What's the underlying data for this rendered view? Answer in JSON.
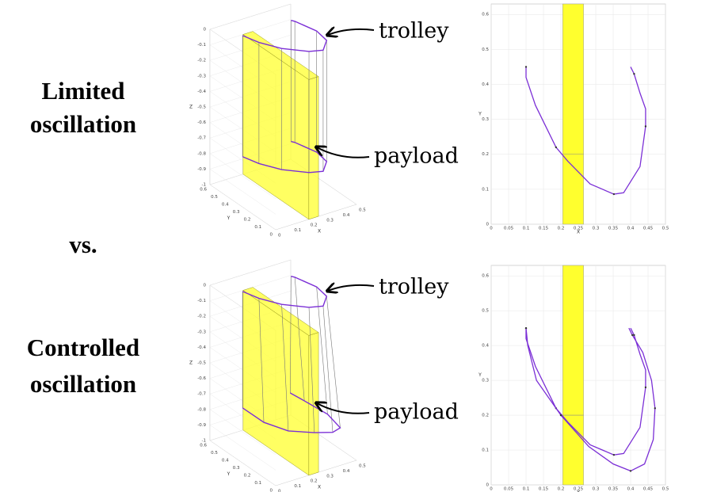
{
  "rows": [
    {
      "label": [
        "Limited",
        "oscillation"
      ]
    },
    {
      "label": [
        "Controlled",
        "oscillation"
      ]
    }
  ],
  "vs": "vs.",
  "chart_data": [
    {
      "type": "line3d",
      "xlabel": "X",
      "ylabel": "Y",
      "zlabel": "Z",
      "xlim": [
        0,
        0.5
      ],
      "ylim": [
        0,
        0.6
      ],
      "zlim": [
        -1,
        0
      ],
      "xticks": [
        0,
        0.1,
        0.2,
        0.3,
        0.4,
        0.5
      ],
      "yticks": [
        0,
        0.1,
        0.2,
        0.3,
        0.4,
        0.5,
        0.6
      ],
      "zticks": [
        0,
        -0.1,
        -0.2,
        -0.3,
        -0.4,
        -0.5,
        -0.6,
        -0.7,
        -0.8,
        -0.9,
        -1
      ],
      "obstacle": {
        "x": [
          0.205,
          0.265
        ],
        "y": [
          0,
          0.6
        ],
        "z": [
          -1,
          -0.1
        ]
      },
      "series": [
        {
          "color": "#7b2fd6",
          "x": [
            0.1,
            0.127,
            0.186,
            0.284,
            0.352,
            0.427,
            0.443,
            0.41,
            0.4
          ],
          "y": [
            0.45,
            0.34,
            0.22,
            0.115,
            0.086,
            0.165,
            0.28,
            0.43,
            0.45
          ],
          "z": [
            0,
            0,
            0,
            0,
            0,
            0,
            0,
            0,
            0
          ]
        },
        {
          "color": "#7b2fd6",
          "x": [
            0.1,
            0.127,
            0.186,
            0.284,
            0.352,
            0.427,
            0.443,
            0.41,
            0.4
          ],
          "y": [
            0.45,
            0.34,
            0.22,
            0.115,
            0.086,
            0.165,
            0.28,
            0.43,
            0.45
          ],
          "z": [
            -0.78,
            -0.78,
            -0.78,
            -0.78,
            -0.78,
            -0.78,
            -0.78,
            -0.78,
            -0.78
          ]
        }
      ],
      "annotations": [
        {
          "text": "trolley"
        },
        {
          "text": "payload"
        }
      ]
    },
    {
      "type": "line",
      "xlabel": "X",
      "ylabel": "Y",
      "xlim": [
        0,
        0.5
      ],
      "ylim": [
        0,
        0.63
      ],
      "xticks": [
        0,
        0.05,
        0.1,
        0.15,
        0.2,
        0.25,
        0.3,
        0.35,
        0.4,
        0.45,
        0.5
      ],
      "yticks": [
        0,
        0.1,
        0.2,
        0.3,
        0.4,
        0.5,
        0.6
      ],
      "band": [
        0.205,
        0.265
      ],
      "band_line": 0.2,
      "series": [
        {
          "color": "#7b2fd6",
          "x": [
            0.1,
            0.1,
            0.127,
            0.186,
            0.22,
            0.284,
            0.352,
            0.38,
            0.427,
            0.443,
            0.443,
            0.427,
            0.41,
            0.4
          ],
          "values": [
            0.45,
            0.42,
            0.34,
            0.22,
            0.18,
            0.115,
            0.086,
            0.09,
            0.165,
            0.28,
            0.33,
            0.375,
            0.43,
            0.45
          ]
        }
      ]
    },
    {
      "type": "line3d",
      "xlabel": "X",
      "ylabel": "Y",
      "zlabel": "Z",
      "xlim": [
        0,
        0.5
      ],
      "ylim": [
        0,
        0.6
      ],
      "zlim": [
        -1,
        0
      ],
      "xticks": [
        0,
        0.1,
        0.2,
        0.3,
        0.4,
        0.5
      ],
      "yticks": [
        0,
        0.1,
        0.2,
        0.3,
        0.4,
        0.5,
        0.6
      ],
      "zticks": [
        0,
        -0.1,
        -0.2,
        -0.3,
        -0.4,
        -0.5,
        -0.6,
        -0.7,
        -0.8,
        -0.9,
        -1
      ],
      "obstacle": {
        "x": [
          0.205,
          0.265
        ],
        "y": [
          0,
          0.6
        ],
        "z": [
          -1,
          -0.1
        ]
      },
      "series": [
        {
          "color": "#7b2fd6",
          "x": [
            0.1,
            0.127,
            0.186,
            0.284,
            0.352,
            0.427,
            0.443,
            0.41,
            0.4
          ],
          "y": [
            0.45,
            0.34,
            0.22,
            0.115,
            0.086,
            0.165,
            0.28,
            0.43,
            0.45
          ],
          "z": [
            0,
            0,
            0,
            0,
            0,
            0,
            0,
            0,
            0
          ]
        },
        {
          "color": "#7b2fd6",
          "x": [
            0.1,
            0.13,
            0.2,
            0.3,
            0.38,
            0.44,
            0.47,
            0.435,
            0.395
          ],
          "y": [
            0.45,
            0.3,
            0.18,
            0.09,
            0.04,
            0.06,
            0.22,
            0.38,
            0.45
          ],
          "z": [
            -0.75,
            -0.78,
            -0.8,
            -0.8,
            -0.8,
            -0.8,
            -0.8,
            -0.78,
            -0.75
          ]
        }
      ],
      "annotations": [
        {
          "text": "trolley"
        },
        {
          "text": "payload"
        }
      ]
    },
    {
      "type": "line",
      "xlabel": "X",
      "ylabel": "Y",
      "xlim": [
        0,
        0.5
      ],
      "ylim": [
        0,
        0.63
      ],
      "xticks": [
        0,
        0.05,
        0.1,
        0.15,
        0.2,
        0.25,
        0.3,
        0.35,
        0.4,
        0.45,
        0.5
      ],
      "yticks": [
        0,
        0.1,
        0.2,
        0.3,
        0.4,
        0.5,
        0.6
      ],
      "band": [
        0.205,
        0.265
      ],
      "band_line": 0.2,
      "series": [
        {
          "color": "#7b2fd6",
          "x": [
            0.1,
            0.1,
            0.127,
            0.186,
            0.22,
            0.284,
            0.352,
            0.38,
            0.427,
            0.443,
            0.443,
            0.427,
            0.41,
            0.4
          ],
          "values": [
            0.45,
            0.42,
            0.34,
            0.22,
            0.18,
            0.115,
            0.086,
            0.09,
            0.165,
            0.28,
            0.33,
            0.375,
            0.43,
            0.45
          ]
        },
        {
          "color": "#7b2fd6",
          "x": [
            0.1,
            0.105,
            0.13,
            0.2,
            0.28,
            0.35,
            0.4,
            0.44,
            0.465,
            0.47,
            0.46,
            0.435,
            0.405,
            0.395
          ],
          "values": [
            0.45,
            0.4,
            0.3,
            0.2,
            0.11,
            0.06,
            0.04,
            0.06,
            0.13,
            0.22,
            0.3,
            0.38,
            0.43,
            0.45
          ]
        }
      ]
    }
  ]
}
